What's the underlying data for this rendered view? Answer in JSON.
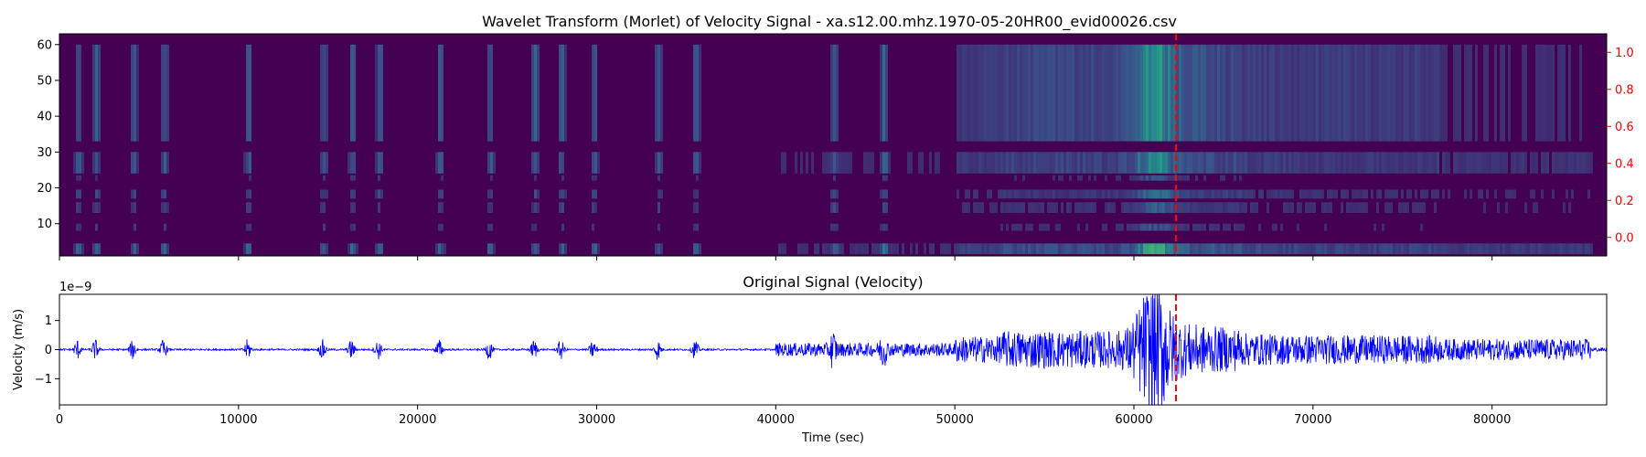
{
  "chart_data": [
    {
      "type": "heatmap",
      "title": "Wavelet Transform (Morlet) of Velocity Signal - xa.s12.00.mhz.1970-05-20HR00_evid00026.csv",
      "xlim": [
        0,
        86400
      ],
      "ylim": [
        1,
        63
      ],
      "yticks": [
        10,
        20,
        30,
        40,
        50,
        60
      ],
      "y2lim": [
        -0.1,
        1.1
      ],
      "y2ticks": [
        "0.0",
        "0.2",
        "0.4",
        "0.6",
        "0.8",
        "1.0"
      ],
      "y2_color": "#ff0000",
      "colormap": "viridis",
      "event_marker_time": 62350,
      "marker_color": "#ff0000",
      "grid": false
    },
    {
      "type": "line",
      "title": "Original Signal (Velocity)",
      "xlabel": "Time (sec)",
      "ylabel": "Velocity (m/s)",
      "offset_text": "1e−9",
      "xlim": [
        0,
        86400
      ],
      "ylim": [
        -1.9,
        1.9
      ],
      "xticks": [
        "0",
        "10000",
        "20000",
        "30000",
        "40000",
        "50000",
        "60000",
        "70000",
        "80000"
      ],
      "yticks": [
        "−1",
        "0",
        "1"
      ],
      "line_color": "#0000ff",
      "event_marker_time": 62350,
      "marker_color": "#ff0000",
      "peak_amplitude_e9": 1.75,
      "trough_amplitude_e9": -1.7,
      "grid": false
    }
  ]
}
